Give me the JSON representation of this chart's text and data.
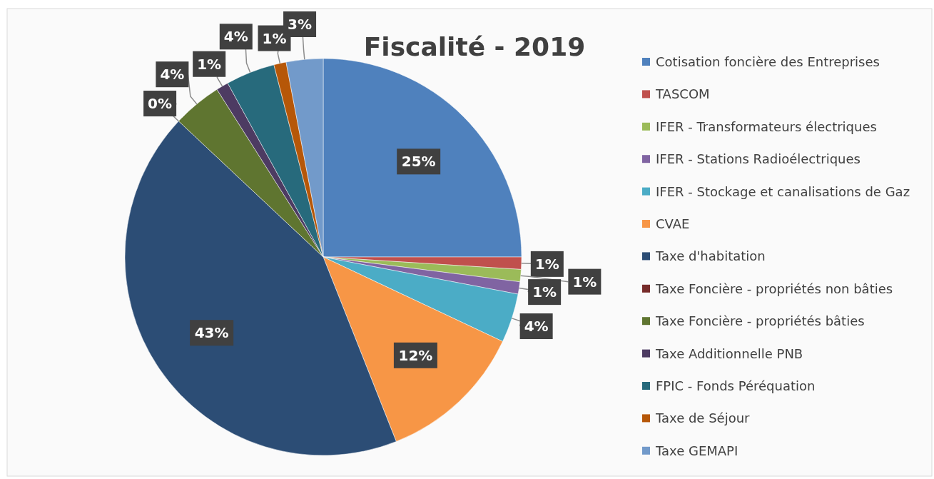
{
  "chart_data": {
    "type": "pie",
    "title": "Fiscalité - 2019",
    "categories": [
      "Cotisation foncière des Entreprises",
      "TASCOM",
      "IFER - Transformateurs électriques",
      "IFER - Stations Radioélectriques",
      "IFER - Stockage et canalisations de Gaz",
      "CVAE",
      "Taxe d'habitation",
      "Taxe Foncière - propriétés non bâties",
      "Taxe Foncière - propriétés bâties",
      "Taxe Additionnelle PNB",
      "FPIC - Fonds Péréquation",
      "Taxe de Séjour",
      "Taxe GEMAPI"
    ],
    "values": [
      25,
      1,
      1,
      1,
      4,
      12,
      43,
      0,
      4,
      1,
      4,
      1,
      3
    ],
    "value_labels": [
      "25%",
      "1%",
      "1%",
      "1%",
      "4%",
      "12%",
      "43%",
      "0%",
      "4%",
      "1%",
      "4%",
      "1%",
      "3%"
    ],
    "colors": [
      "#4f81bd",
      "#c0504d",
      "#9bbb59",
      "#8064a2",
      "#4bacc6",
      "#f79646",
      "#2c4d75",
      "#772c2a",
      "#5f7530",
      "#4d3b62",
      "#276a7c",
      "#b65708",
      "#729aca"
    ],
    "legend": "right"
  }
}
